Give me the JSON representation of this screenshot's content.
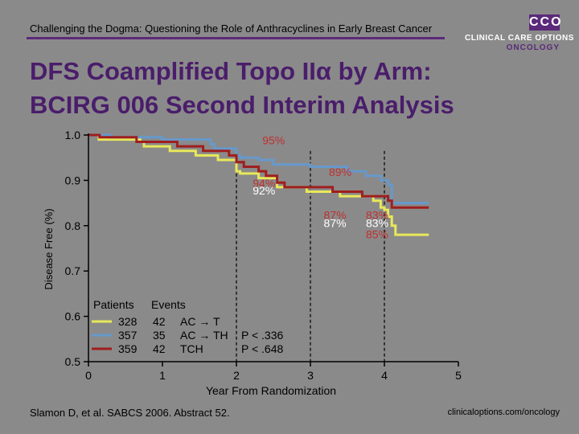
{
  "header": {
    "title": "Challenging the Dogma: Questioning the Role of Anthracyclines in Early Breast Cancer"
  },
  "logo": {
    "mark": "CCO",
    "line1": "CLINICAL CARE OPTIONS",
    "line2": "ONCOLOGY"
  },
  "slide": {
    "title_line1": "DFS Coamplified Topo IIα by Arm:",
    "title_line2": "BCIRG 006 Second Interim Analysis"
  },
  "footer": {
    "citation": "Slamon D, et al. SABCS 2006. Abstract 52.",
    "url": "clinicaloptions.com/oncology"
  },
  "chart_data": {
    "type": "line",
    "subtype": "kaplan-meier",
    "xlabel": "Year From Randomization",
    "ylabel": "Disease Free (%)",
    "xlim": [
      0,
      5
    ],
    "ylim": [
      0.5,
      1.0
    ],
    "x_ticks": [
      0,
      1,
      2,
      3,
      4,
      5
    ],
    "y_ticks": [
      "0.5",
      "0.6",
      "0.7",
      "0.8",
      "0.9",
      "1.0"
    ],
    "y_tick_values": [
      0.5,
      0.6,
      0.7,
      0.8,
      0.9,
      1.0
    ],
    "reference_years": [
      2,
      3,
      4
    ],
    "legend": {
      "headers": [
        "Patients",
        "Events"
      ],
      "rows": [
        {
          "color": "#e8e85a",
          "patients": "328",
          "events": "42",
          "arm": "AC → T",
          "p": ""
        },
        {
          "color": "#6699cc",
          "patients": "357",
          "events": "35",
          "arm": "AC → TH",
          "p": "P < .336"
        },
        {
          "color": "#a01e1e",
          "patients": "359",
          "events": "42",
          "arm": "TCH",
          "p": "P < .648"
        }
      ]
    },
    "series": [
      {
        "name": "AC → T",
        "color": "#e8e85a",
        "points": [
          [
            0,
            1.0
          ],
          [
            0.12,
            1.0
          ],
          [
            0.14,
            0.99
          ],
          [
            0.5,
            0.99
          ],
          [
            0.7,
            0.985
          ],
          [
            0.75,
            0.975
          ],
          [
            1.05,
            0.975
          ],
          [
            1.1,
            0.965
          ],
          [
            1.4,
            0.965
          ],
          [
            1.45,
            0.955
          ],
          [
            1.7,
            0.955
          ],
          [
            1.75,
            0.945
          ],
          [
            1.95,
            0.945
          ],
          [
            2.0,
            0.92
          ],
          [
            2.05,
            0.915
          ],
          [
            2.3,
            0.905
          ],
          [
            2.55,
            0.885
          ],
          [
            2.9,
            0.885
          ],
          [
            2.95,
            0.875
          ],
          [
            3.3,
            0.875
          ],
          [
            3.4,
            0.865
          ],
          [
            3.7,
            0.865
          ],
          [
            3.85,
            0.855
          ],
          [
            3.95,
            0.84
          ],
          [
            4.0,
            0.835
          ],
          [
            4.05,
            0.82
          ],
          [
            4.1,
            0.8
          ],
          [
            4.15,
            0.78
          ],
          [
            4.6,
            0.78
          ]
        ]
      },
      {
        "name": "AC → TH",
        "color": "#6699cc",
        "points": [
          [
            0,
            1.0
          ],
          [
            0.25,
            1.0
          ],
          [
            0.3,
            0.995
          ],
          [
            0.95,
            0.995
          ],
          [
            1.0,
            0.99
          ],
          [
            1.6,
            0.99
          ],
          [
            1.65,
            0.98
          ],
          [
            1.7,
            0.97
          ],
          [
            1.95,
            0.97
          ],
          [
            2.0,
            0.955
          ],
          [
            2.05,
            0.95
          ],
          [
            2.3,
            0.945
          ],
          [
            2.5,
            0.935
          ],
          [
            3.0,
            0.93
          ],
          [
            3.3,
            0.93
          ],
          [
            3.5,
            0.92
          ],
          [
            3.75,
            0.91
          ],
          [
            3.9,
            0.91
          ],
          [
            3.95,
            0.9
          ],
          [
            4.05,
            0.89
          ],
          [
            4.1,
            0.85
          ],
          [
            4.6,
            0.85
          ]
        ]
      },
      {
        "name": "TCH",
        "color": "#a01e1e",
        "points": [
          [
            0,
            1.0
          ],
          [
            0.1,
            1.0
          ],
          [
            0.15,
            0.995
          ],
          [
            0.6,
            0.995
          ],
          [
            0.65,
            0.985
          ],
          [
            1.0,
            0.985
          ],
          [
            1.2,
            0.975
          ],
          [
            1.5,
            0.975
          ],
          [
            1.55,
            0.965
          ],
          [
            1.85,
            0.965
          ],
          [
            1.9,
            0.955
          ],
          [
            2.0,
            0.94
          ],
          [
            2.1,
            0.93
          ],
          [
            2.3,
            0.92
          ],
          [
            2.4,
            0.91
          ],
          [
            2.55,
            0.895
          ],
          [
            2.65,
            0.885
          ],
          [
            3.2,
            0.885
          ],
          [
            3.3,
            0.875
          ],
          [
            3.6,
            0.875
          ],
          [
            3.7,
            0.865
          ],
          [
            4.0,
            0.865
          ],
          [
            4.05,
            0.855
          ],
          [
            4.1,
            0.84
          ],
          [
            4.6,
            0.84
          ]
        ]
      }
    ],
    "annotations": [
      {
        "text": "95%",
        "x": 2.35,
        "y": 0.98,
        "color": "#c03030"
      },
      {
        "text": "89%",
        "x": 3.25,
        "y": 0.91,
        "color": "#c03030"
      },
      {
        "text": "94%",
        "x": 2.22,
        "y": 0.885,
        "color": "#c03030"
      },
      {
        "text": "92%",
        "x": 2.22,
        "y": 0.869,
        "color": "#ffffff"
      },
      {
        "text": "87%",
        "x": 3.18,
        "y": 0.815,
        "color": "#c03030"
      },
      {
        "text": "87%",
        "x": 3.18,
        "y": 0.797,
        "color": "#ffffff"
      },
      {
        "text": "83%",
        "x": 3.75,
        "y": 0.815,
        "color": "#c03030"
      },
      {
        "text": "83%",
        "x": 3.75,
        "y": 0.797,
        "color": "#ffffff"
      },
      {
        "text": "85%",
        "x": 3.75,
        "y": 0.772,
        "color": "#c03030"
      }
    ]
  }
}
